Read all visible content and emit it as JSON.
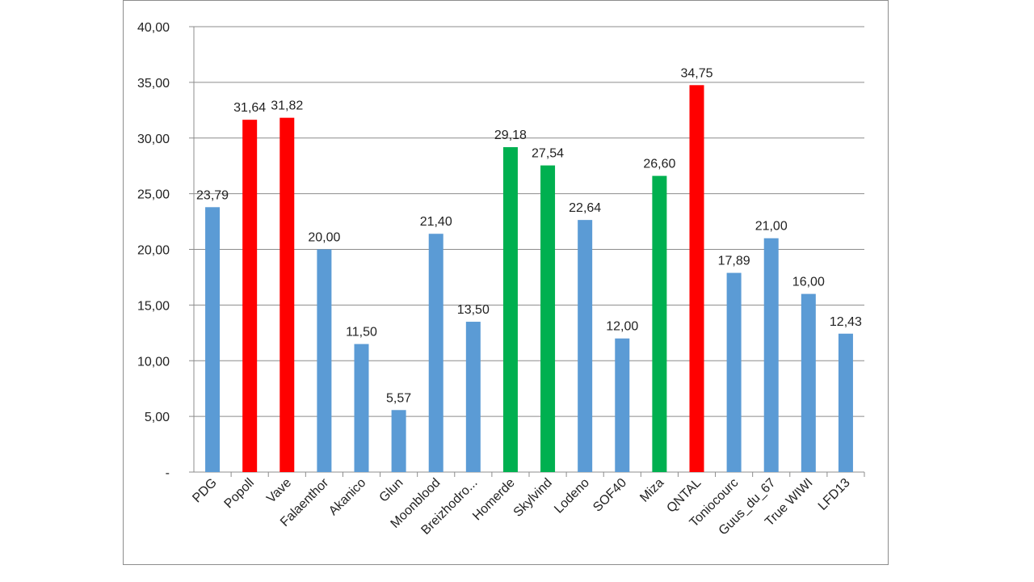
{
  "chart_data": {
    "type": "bar",
    "title": "",
    "xlabel": "",
    "ylabel": "",
    "ylim": [
      0,
      40
    ],
    "y_ticks": [
      0,
      5,
      10,
      15,
      20,
      25,
      30,
      35,
      40
    ],
    "y_tick_labels": [
      "-",
      "5,00",
      "10,00",
      "15,00",
      "20,00",
      "25,00",
      "30,00",
      "35,00",
      "40,00"
    ],
    "grid": true,
    "legend": "none",
    "colors": {
      "blue": "#5b9bd5",
      "red": "#ff0000",
      "green": "#00b050"
    },
    "categories": [
      "PDG",
      "Popoll",
      "Vave",
      "Falaenthor",
      "Akanico",
      "Glun",
      "Moonblood",
      "Breizhodro...",
      "Homerde",
      "Skylvind",
      "Lodeno",
      "SOF40",
      "Miza",
      "QNTAL",
      "Toniocourc",
      "Guus_du_67",
      "True WIWI",
      "LFD13"
    ],
    "values": [
      23.79,
      31.64,
      31.82,
      20.0,
      11.5,
      5.57,
      21.4,
      13.5,
      29.18,
      27.54,
      22.64,
      12.0,
      26.6,
      34.75,
      17.89,
      21.0,
      16.0,
      12.43
    ],
    "value_labels": [
      "23,79",
      "31,64",
      "31,82",
      "20,00",
      "11,50",
      "5,57",
      "21,40",
      "13,50",
      "29,18",
      "27,54",
      "22,64",
      "12,00",
      "26,60",
      "34,75",
      "17,89",
      "21,00",
      "16,00",
      "12,43"
    ],
    "bar_colors": [
      "blue",
      "red",
      "red",
      "blue",
      "blue",
      "blue",
      "blue",
      "blue",
      "green",
      "green",
      "blue",
      "blue",
      "green",
      "red",
      "blue",
      "blue",
      "blue",
      "blue"
    ]
  }
}
